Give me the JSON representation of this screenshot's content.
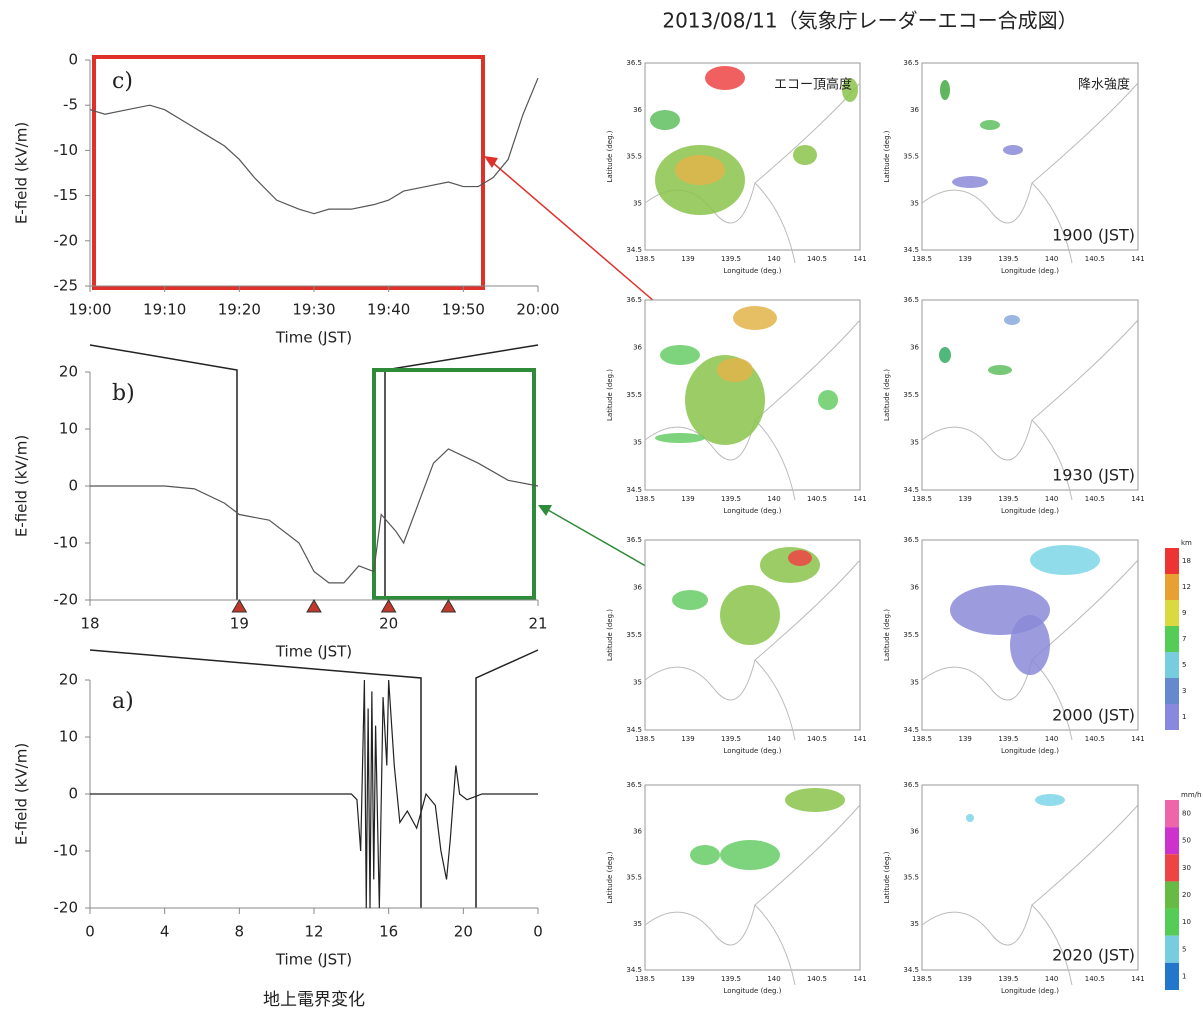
{
  "chart_data": [
    {
      "type": "line",
      "label": "c)",
      "ylabel": "E-field (kV/m)",
      "xlabel": "Time (JST)",
      "color": "#555555",
      "x": [
        0,
        2,
        5,
        8,
        10,
        12,
        15,
        18,
        20,
        22,
        25,
        28,
        30,
        32,
        35,
        38,
        40,
        42,
        45,
        48,
        50,
        52,
        54,
        56,
        58,
        60
      ],
      "values": [
        -5.5,
        -6,
        -5.5,
        -5,
        -5.5,
        -6.5,
        -8,
        -9.5,
        -11,
        -13,
        -15.5,
        -16.5,
        -17,
        -16.5,
        -16.5,
        -16,
        -15.5,
        -14.5,
        -14,
        -13.5,
        -14,
        -14,
        -13,
        -11,
        -6,
        -2
      ],
      "xlim": [
        0,
        60
      ],
      "ylim": [
        -25,
        0
      ],
      "xticks": [
        {
          "value": 0,
          "label": "19:00"
        },
        {
          "value": 10,
          "label": "19:10"
        },
        {
          "value": 20,
          "label": "19:20"
        },
        {
          "value": 30,
          "label": "19:30"
        },
        {
          "value": 40,
          "label": "19:40"
        },
        {
          "value": 50,
          "label": "19:50"
        },
        {
          "value": 60,
          "label": "20:00"
        }
      ],
      "yticks": [
        -25,
        -20,
        -15,
        -10,
        -5,
        0
      ]
    },
    {
      "type": "line",
      "label": "b)",
      "ylabel": "E-field (kV/m)",
      "xlabel": "Time (JST)",
      "color": "#555555",
      "x": [
        18,
        18.5,
        18.7,
        18.9,
        19,
        19.2,
        19.4,
        19.5,
        19.6,
        19.7,
        19.8,
        19.9,
        19.95,
        20.05,
        20.1,
        20.2,
        20.3,
        20.4,
        20.6,
        20.8,
        21
      ],
      "values": [
        0,
        0,
        -0.5,
        -3,
        -5,
        -6,
        -10,
        -15,
        -17,
        -17,
        -14,
        -15,
        -5,
        -8,
        -10,
        -3,
        4,
        6.5,
        4,
        1,
        0
      ],
      "xlim": [
        18,
        21
      ],
      "ylim": [
        -20,
        20
      ],
      "xticks": [
        18,
        19,
        20,
        21
      ],
      "yticks": [
        -20,
        -10,
        0,
        10,
        20
      ],
      "markers": [
        19,
        19.5,
        20,
        20.4
      ],
      "marker_color": "#c0392b"
    },
    {
      "type": "line",
      "label": "a)",
      "ylabel": "E-field (kV/m)",
      "xlabel": "Time (JST)",
      "color": "#222222",
      "x": [
        0,
        14,
        14.3,
        14.5,
        14.7,
        14.8,
        14.9,
        15,
        15.1,
        15.2,
        15.3,
        15.5,
        15.7,
        15.9,
        16,
        16.3,
        16.6,
        17,
        17.5,
        18,
        18.5,
        18.8,
        19.1,
        19.3,
        19.6,
        19.8,
        20.2,
        21,
        24
      ],
      "values": [
        0,
        0,
        -1,
        -10,
        20,
        -20,
        15,
        -20,
        18,
        -15,
        12,
        -20,
        17,
        5,
        20,
        5,
        -5,
        -3,
        -6,
        0,
        -2,
        -10,
        -15,
        -8,
        5,
        0,
        -1,
        0,
        0
      ],
      "xlim": [
        0,
        24
      ],
      "ylim": [
        -20,
        20
      ],
      "xticks": [
        0,
        4,
        8,
        12,
        16,
        20,
        {
          "value": 24,
          "label": "0"
        }
      ],
      "yticks": [
        -20,
        -10,
        0,
        10,
        20
      ],
      "caption": "地上電界変化"
    }
  ],
  "radar": {
    "title": "2013/08/11（気象庁レーダーエコー合成図）",
    "columns": [
      "エコー頂高度",
      "降水強度"
    ],
    "times": [
      "1900  (JST)",
      "1930  (JST)",
      "2000  (JST)",
      "2020  (JST)"
    ],
    "xlabel": "Longitude (deg.)",
    "ylabel": "Latitude (deg.)",
    "lonlim": [
      138.5,
      141
    ],
    "latlim": [
      34.5,
      36.5
    ],
    "lon_ticks": [
      138.5,
      139,
      139.5,
      140,
      140.5,
      141
    ],
    "lat_ticks": [
      34.5,
      35,
      35.5,
      36,
      36.5
    ],
    "colorbars": [
      {
        "unit": "km",
        "labels": [
          "18",
          "12",
          "9",
          "7",
          "5",
          "3",
          "1"
        ]
      },
      {
        "unit": "mm/h",
        "labels": [
          "80",
          "50",
          "30",
          "20",
          "10",
          "5",
          "1"
        ]
      }
    ]
  }
}
